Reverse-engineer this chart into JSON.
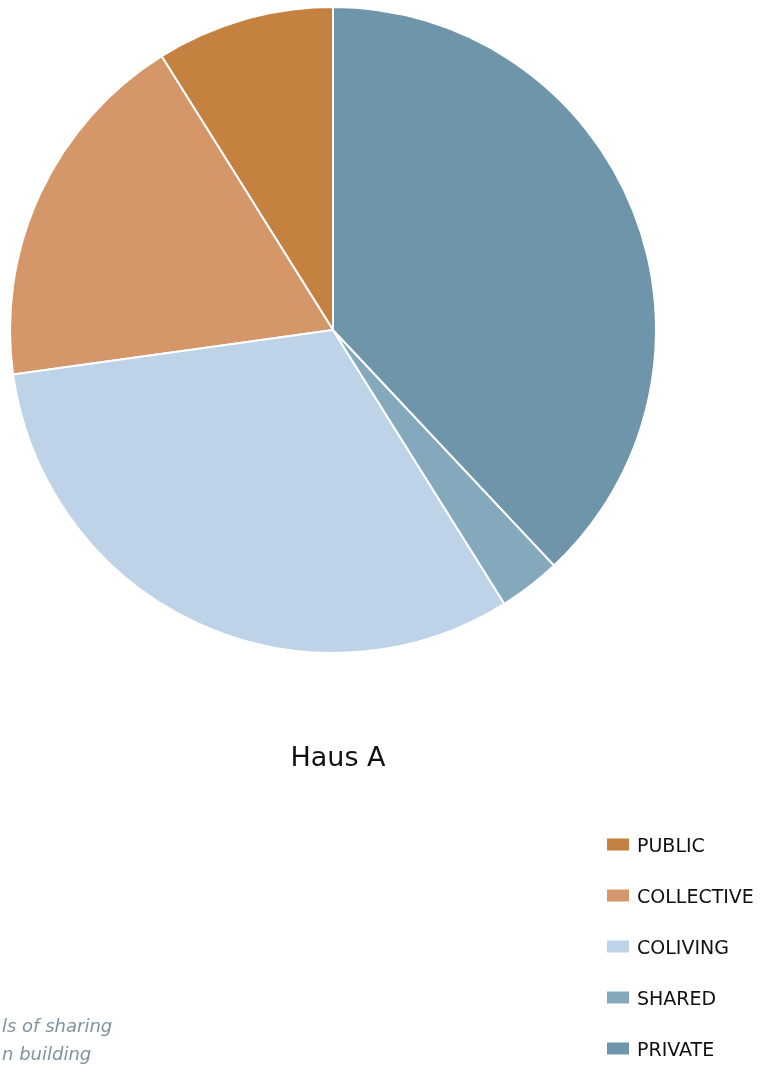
{
  "chart_data": {
    "type": "pie",
    "title": "Haus A",
    "categories": [
      "PUBLIC",
      "COLLECTIVE",
      "COLIVING",
      "SHARED",
      "PRIVATE"
    ],
    "values": [
      8.9,
      18.3,
      31.7,
      3.1,
      38.0
    ],
    "colors": [
      "#c4813f",
      "#d5976a",
      "#bed3e8",
      "#84a9bd",
      "#6f95aa"
    ],
    "legend": "bottom right",
    "annotations": [
      "ls of sharing\nn building"
    ]
  }
}
